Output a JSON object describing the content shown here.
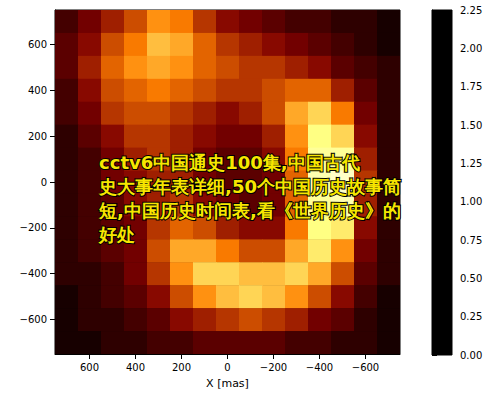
{
  "chart_data": {
    "type": "heatmap",
    "x_label": "X [mas]",
    "xlim": [
      750,
      -750
    ],
    "xticks": [
      600,
      400,
      200,
      0,
      {
        "value": -200,
        "label": "−200"
      },
      {
        "value": -400,
        "label": "−400"
      },
      {
        "value": -600,
        "label": "−600"
      }
    ],
    "ylim": [
      -750,
      750
    ],
    "yticks": [
      600,
      400,
      200,
      0,
      {
        "value": -200,
        "label": "−200"
      },
      {
        "value": -400,
        "label": "−400"
      },
      {
        "value": -600,
        "label": "−600"
      }
    ],
    "x": [
      700,
      600,
      500,
      400,
      300,
      200,
      100,
      0,
      -100,
      -200,
      -300,
      -400,
      -500,
      -600,
      -700
    ],
    "y": [
      700,
      600,
      500,
      400,
      300,
      200,
      100,
      0,
      -100,
      -200,
      -300,
      -400,
      -500,
      -600,
      -700
    ],
    "values": [
      [
        0.3,
        0.5,
        0.7,
        0.9,
        1.2,
        1.1,
        0.8,
        0.6,
        0.5,
        0.4,
        0.3,
        0.3,
        0.2,
        0.2,
        0.1
      ],
      [
        0.4,
        0.6,
        0.9,
        1.1,
        1.4,
        1.3,
        1.0,
        0.8,
        0.7,
        0.6,
        0.5,
        0.4,
        0.3,
        0.2,
        0.1
      ],
      [
        0.4,
        0.7,
        1.0,
        1.2,
        1.3,
        1.2,
        1.0,
        0.9,
        0.8,
        0.8,
        0.7,
        0.6,
        0.4,
        0.3,
        0.2
      ],
      [
        0.3,
        0.6,
        0.9,
        1.0,
        1.1,
        1.0,
        0.9,
        0.8,
        0.8,
        0.9,
        1.0,
        1.0,
        0.7,
        0.4,
        0.2
      ],
      [
        0.3,
        0.5,
        0.8,
        0.9,
        0.9,
        0.8,
        0.7,
        0.6,
        0.7,
        0.9,
        1.3,
        1.5,
        1.1,
        0.5,
        0.2
      ],
      [
        0.2,
        0.4,
        0.6,
        0.8,
        0.8,
        0.7,
        0.6,
        0.5,
        0.5,
        0.7,
        1.2,
        1.7,
        1.5,
        0.6,
        0.2
      ],
      [
        0.2,
        0.3,
        0.5,
        0.7,
        0.8,
        0.7,
        0.5,
        0.4,
        0.4,
        0.6,
        1.1,
        1.8,
        1.8,
        0.7,
        0.2
      ],
      [
        0.2,
        0.3,
        0.5,
        0.6,
        0.7,
        0.7,
        0.5,
        0.4,
        0.4,
        0.5,
        1.0,
        1.9,
        2.0,
        0.8,
        0.2
      ],
      [
        0.2,
        0.3,
        0.4,
        0.6,
        0.7,
        0.8,
        0.6,
        0.5,
        0.4,
        0.5,
        1.0,
        1.8,
        1.9,
        0.7,
        0.2
      ],
      [
        0.2,
        0.3,
        0.4,
        0.5,
        0.8,
        1.0,
        0.9,
        0.7,
        0.6,
        0.6,
        1.1,
        1.7,
        1.6,
        0.6,
        0.2
      ],
      [
        0.2,
        0.3,
        0.4,
        0.5,
        0.9,
        1.3,
        1.3,
        1.1,
        0.9,
        0.9,
        1.3,
        1.6,
        1.2,
        0.5,
        0.2
      ],
      [
        0.2,
        0.2,
        0.3,
        0.5,
        0.8,
        1.2,
        1.5,
        1.5,
        1.4,
        1.4,
        1.5,
        1.3,
        0.9,
        0.4,
        0.2
      ],
      [
        0.1,
        0.2,
        0.3,
        0.4,
        0.6,
        0.9,
        1.2,
        1.4,
        1.5,
        1.4,
        1.2,
        0.9,
        0.6,
        0.3,
        0.1
      ],
      [
        0.1,
        0.2,
        0.2,
        0.3,
        0.4,
        0.6,
        0.7,
        0.8,
        0.9,
        0.8,
        0.7,
        0.5,
        0.4,
        0.2,
        0.1
      ],
      [
        0.1,
        0.1,
        0.2,
        0.2,
        0.3,
        0.3,
        0.4,
        0.4,
        0.4,
        0.4,
        0.3,
        0.3,
        0.2,
        0.2,
        0.1
      ]
    ],
    "colorbar": {
      "range": [
        0,
        2.25
      ],
      "ticks": [
        {
          "value": 0,
          "label": "0.00"
        },
        {
          "value": 0.25,
          "label": "0.25"
        },
        {
          "value": 0.5,
          "label": "0.50"
        },
        {
          "value": 0.75,
          "label": "0.75"
        },
        {
          "value": 1,
          "label": "1.00"
        },
        {
          "value": 1.25,
          "label": "1.25"
        },
        {
          "value": 1.5,
          "label": "1.50"
        },
        {
          "value": 1.75,
          "label": "1.75"
        },
        {
          "value": 2,
          "label": "2.00"
        },
        {
          "value": 2.25,
          "label": "2.25"
        }
      ]
    },
    "annotation": [
      "cctv6中国通史100集,中国古代",
      "史大事年表详细,50个中国历史故事简",
      "短,中国历史时间表,看《世界历史》的",
      "好处"
    ]
  }
}
